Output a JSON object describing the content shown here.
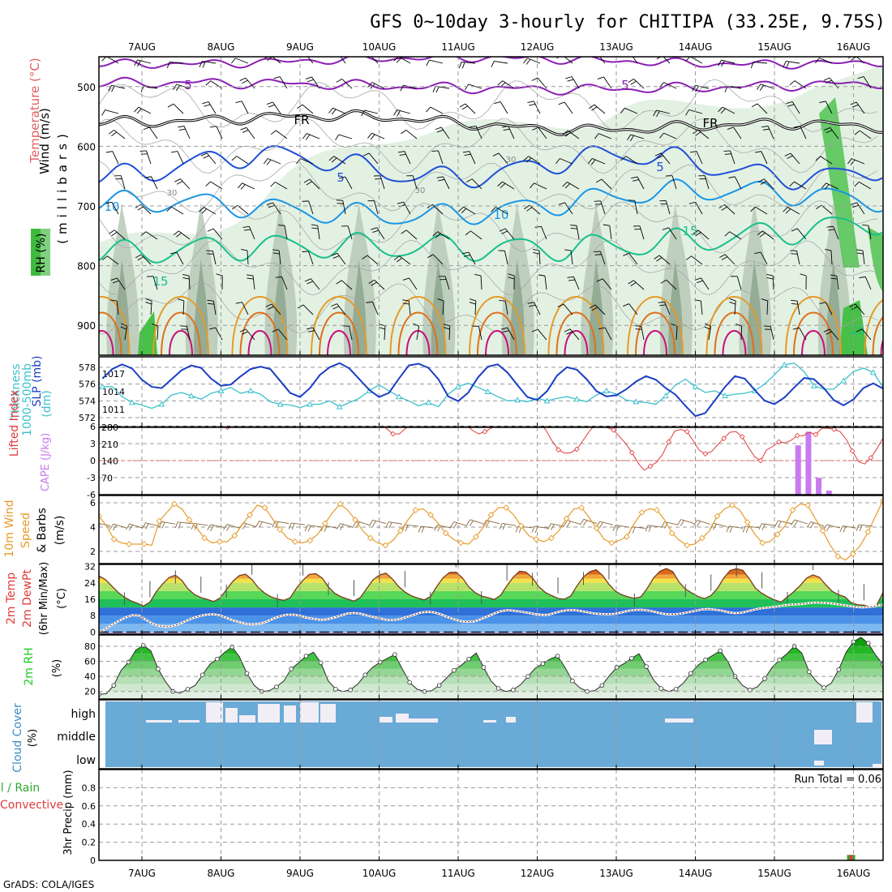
{
  "title": "GFS 0~10day 3-hourly for CHITIPA (33.25E, 9.75S)",
  "credit": "GrADS: COLA/IGES",
  "colors": {
    "frame": "#000000",
    "grid": "#999999",
    "rh_light": "#e3f1e3",
    "rh_mid": "#b7c9b7",
    "rh_dark": "#8fa68f",
    "rh_bright": "#46c046",
    "purple": "#8a1fb4",
    "blue": "#1f4fd6",
    "light_blue": "#1896e6",
    "green": "#17c08a",
    "orange": "#e69a28",
    "dark_orange": "#e0701a",
    "magenta": "#c8107a",
    "cyan": "#3cc0cc",
    "slp_blue": "#1b3ec4",
    "li_red": "#e03a3a",
    "cape_violet": "#c87af0",
    "wind_orange": "#e69a28",
    "barb_brown": "#8a6a40",
    "cloud_blue": "#6aaad6",
    "cloud_white": "#f2eef6",
    "rh2m_green": "#22cc22"
  },
  "chart_data": [
    {
      "type": "contour",
      "name": "cross-section",
      "ylabel_parts": [
        "RH (%)",
        "Temperature (°C)",
        "Wind (m/s)"
      ],
      "yaxis_title": "(millibars)",
      "x_ticks": [
        "7AUG",
        "8AUG",
        "9AUG",
        "10AUG",
        "11AUG",
        "12AUG",
        "13AUG",
        "14AUG",
        "15AUG",
        "16AUG"
      ],
      "y_ticks": [
        500,
        600,
        700,
        800,
        900
      ],
      "ylim": [
        450,
        950
      ],
      "contour_labels": [
        "5",
        "5",
        "FR",
        "FR",
        "30",
        "30",
        "30",
        "5",
        "5",
        "10",
        "10",
        "15",
        "15",
        "15"
      ]
    },
    {
      "type": "line",
      "name": "thickness-slp",
      "ylabel_left": "1000-500mb Thickness (dm)",
      "ylabel_right": "SLP (mb)",
      "left_ticks": [
        572,
        574,
        576,
        578
      ],
      "right_ticks": [
        1011,
        1014,
        1017
      ],
      "series": [
        {
          "name": "SLP (mb)",
          "values": [
            1016.2,
            1017.8,
            1018.6,
            1017.9,
            1016.0,
            1014.8,
            1014.6,
            1016.1,
            1017.6,
            1018.4,
            1018.0,
            1016.2,
            1015.0,
            1015.2,
            1016.6,
            1017.8,
            1018.2,
            1017.8,
            1015.8,
            1013.8,
            1013.1,
            1014.6,
            1016.8,
            1018.1,
            1018.8,
            1017.9,
            1016.1,
            1014.3,
            1013.1,
            1013.8,
            1016.2,
            1018.4,
            1018.7,
            1018.0,
            1016.1,
            1013.2,
            1012.4,
            1013.8,
            1016.4,
            1018.2,
            1018.6,
            1017.2,
            1015.1,
            1013.1,
            1012.6,
            1014.1,
            1016.7,
            1018.1,
            1017.7,
            1016.1,
            1014.1,
            1013.2,
            1013.4,
            1014.4,
            1015.7,
            1016.6,
            1016.0,
            1014.6,
            1013.5,
            1011.6,
            1009.9,
            1010.4,
            1012.6,
            1014.8,
            1016.6,
            1016.2,
            1014.3,
            1012.5,
            1011.9,
            1013.0,
            1014.7,
            1016.3,
            1016.1,
            1014.6,
            1012.6,
            1011.7,
            1012.7,
            1014.6,
            1015.4,
            1014.5,
            1013.1,
            1014.8,
            1016.5,
            1017.1,
            1015.7,
            1013.6,
            1011.7,
            1011.5,
            1012.7,
            1014.9,
            1016.1,
            1015.2,
            1013.2,
            1010.8,
            1011.0,
            1013.8,
            1016.1,
            1018.1,
            1019.6
          ]
        },
        {
          "name": "1000-500mb Thickness (dm)",
          "values": [
            575.7,
            575.7,
            574.5,
            573.8,
            573.5,
            573.1,
            573.6,
            574.7,
            575.0,
            574.6,
            574.2,
            574.9,
            575.2,
            575.6,
            574.9,
            575.2,
            574.8,
            573.9,
            573.6,
            573.5,
            573.2,
            573.6,
            573.6,
            574.0,
            573.3,
            573.8,
            574.3,
            575.2,
            575.9,
            575.2,
            574.5,
            574.0,
            573.4,
            573.8,
            573.3,
            574.8,
            575.7,
            576.1,
            575.6,
            575.1,
            574.5,
            574.0,
            574.1,
            573.9,
            574.3,
            574.0,
            574.3,
            574.5,
            574.2,
            573.9,
            574.7,
            575.2,
            574.8,
            574.1,
            573.9,
            573.8,
            573.6,
            574.6,
            575.9,
            576.6,
            575.7,
            575.0,
            575.2,
            574.6,
            574.8,
            574.9,
            575.2,
            576.0,
            577.1,
            578.3,
            578.5,
            577.5,
            575.8,
            575.4,
            575.4,
            576.4,
            577.5,
            577.9,
            577.4,
            575.6,
            575.2,
            575.7,
            575.5,
            575.4,
            575.2,
            575.6,
            575.9,
            576.6,
            577.9,
            578.2,
            577.8,
            576.3,
            575.6,
            576.0,
            576.9,
            577.5,
            577.1,
            575.6,
            575.1
          ]
        }
      ]
    },
    {
      "type": "bar",
      "name": "li-cape",
      "ylabel_left": "Lifted Index",
      "ylabel_right": "CAPE (J/kg)",
      "left_ticks": [
        "6",
        "3",
        "0",
        "-3",
        "-6"
      ],
      "right_ticks": [
        70,
        140,
        210,
        280
      ],
      "cape_bars": [
        {
          "x": 8.3,
          "value": 205
        },
        {
          "x": 8.43,
          "value": 262
        },
        {
          "x": 8.56,
          "value": 70
        },
        {
          "x": 8.69,
          "value": 17
        }
      ],
      "lifted_index": [
        6.3,
        6.9,
        7.2,
        7.5,
        7.9,
        8.0,
        8.0,
        7.6,
        7.1,
        6.7,
        6.5,
        6.7,
        7.1,
        7.7,
        8.3,
        8.4,
        8.4,
        8.1,
        7.5,
        6.9,
        6.3,
        5.9,
        6.0,
        6.6,
        7.3,
        7.8,
        8.3,
        8.7,
        8.8,
        8.6,
        8.1,
        7.5,
        6.9,
        6.4,
        6.0,
        5.9,
        6.1,
        6.8,
        7.4,
        7.9,
        8.4,
        8.5,
        8.5,
        8.2,
        7.6,
        7.2,
        6.4,
        5.6,
        4.7,
        4.7,
        5.6,
        6.4,
        7.2,
        7.8,
        8.3,
        8.7,
        8.8,
        8.5,
        8.1,
        7.3,
        6.3,
        5.3,
        4.7,
        5.1,
        5.7,
        6.4,
        7.0,
        7.6,
        8.3,
        8.6,
        8.3,
        7.5,
        6.7,
        5.3,
        3.4,
        1.9,
        1.3,
        1.4,
        2.0,
        3.5,
        5.1,
        6.3,
        6.1,
        5.8,
        5.4,
        4.2,
        3.0,
        1.4,
        -0.4,
        -1.7,
        -1.0,
        -0.3,
        1.1,
        3.3,
        5.2,
        5.5,
        5.1,
        3.5,
        1.8,
        1.2,
        1.6,
        2.8,
        3.9,
        5.0,
        5.1,
        4.2,
        2.4,
        0.7,
        0.0,
        1.9,
        2.5,
        3.3,
        3.1,
        3.6,
        4.4,
        4.4,
        5.0,
        4.6,
        5.7,
        5.7,
        5.5,
        5.1,
        3.7,
        1.7,
        -0.2,
        -0.6,
        0.5,
        2.1,
        4.0
      ]
    },
    {
      "type": "line",
      "name": "wind10m",
      "ylabel": "10m Wind Speed & Barbs (m/s)",
      "ylabel_parts": [
        "10m Wind",
        "Speed",
        "& Barbs",
        "(m/s)"
      ],
      "y_ticks": [
        2,
        4,
        6
      ],
      "ylim": [
        1,
        6.6
      ],
      "values": [
        4.9,
        4.1,
        3.0,
        2.7,
        2.6,
        2.6,
        2.6,
        2.5,
        4.5,
        5.2,
        5.9,
        5.5,
        4.6,
        3.9,
        3.1,
        2.7,
        2.8,
        2.8,
        3.3,
        4.2,
        5.0,
        5.8,
        5.6,
        4.7,
        3.8,
        3.1,
        2.8,
        2.7,
        2.9,
        3.4,
        4.3,
        5.2,
        5.9,
        5.4,
        4.6,
        3.7,
        3.1,
        2.7,
        2.5,
        2.9,
        3.7,
        4.6,
        5.4,
        5.5,
        5.0,
        4.3,
        3.5,
        3.0,
        2.7,
        2.6,
        3.2,
        4.0,
        5.0,
        5.6,
        5.6,
        5.0,
        4.1,
        3.3,
        3.0,
        2.8,
        3.1,
        3.7,
        4.7,
        5.5,
        5.6,
        4.8,
        3.9,
        3.0,
        2.7,
        2.9,
        3.2,
        4.3,
        5.2,
        5.5,
        5.4,
        4.6,
        3.5,
        2.9,
        2.5,
        2.6,
        3.1,
        3.7,
        4.9,
        5.5,
        5.8,
        5.4,
        4.4,
        3.4,
        2.7,
        2.8,
        3.4,
        4.1,
        5.4,
        5.9,
        5.8,
        4.7,
        3.7,
        2.5,
        1.6,
        1.3,
        1.8,
        2.5,
        3.6,
        4.9,
        6.2
      ]
    },
    {
      "type": "area",
      "name": "temp-dewpt",
      "ylabel": "2m Temp 2m DewPt (6hr Min/Max) (°C)",
      "ylabel_parts": [
        "2m Temp",
        "2m DewPt",
        "(6hr Min/Max)",
        "(°C)"
      ],
      "y_ticks": [
        0,
        8,
        16,
        24,
        32
      ],
      "ylim": [
        -1,
        33
      ],
      "temp": [
        27.4,
        25.6,
        22.5,
        19.4,
        17.0,
        15.3,
        14.1,
        12.7,
        14.6,
        19.7,
        23.5,
        26.6,
        27.7,
        25.2,
        21.0,
        18.3,
        16.8,
        15.9,
        14.9,
        16.6,
        20.7,
        24.7,
        27.5,
        28.2,
        25.6,
        21.7,
        19.0,
        17.2,
        16.1,
        15.5,
        16.7,
        21.5,
        25.2,
        28.1,
        28.5,
        26.4,
        22.0,
        18.9,
        17.2,
        16.1,
        15.1,
        16.8,
        21.2,
        25.5,
        27.8,
        28.7,
        26.0,
        22.2,
        19.5,
        17.7,
        16.6,
        15.7,
        17.3,
        22.3,
        26.5,
        29.1,
        29.2,
        26.5,
        22.1,
        19.3,
        17.6,
        16.8,
        15.9,
        17.9,
        22.7,
        26.8,
        29.7,
        29.2,
        26.5,
        22.1,
        19.4,
        17.8,
        16.4,
        16.0,
        17.6,
        22.6,
        26.9,
        29.4,
        30.4,
        27.6,
        23.3,
        20.0,
        18.2,
        17.2,
        16.4,
        17.2,
        21.3,
        26.4,
        29.6,
        31.0,
        29.5,
        24.4,
        21.0,
        19.1,
        17.3,
        16.3,
        17.8,
        21.2,
        26.3,
        30.0,
        30.9,
        30.1,
        26.1,
        21.3,
        18.9,
        17.1,
        15.7,
        14.6,
        17.2,
        19.7,
        22.7,
        26.3,
        27.9,
        26.7,
        23.1,
        19.9,
        18.2,
        17.2,
        14.3,
        13.3,
        13.1,
        12.3,
        13.1,
        19.3
      ],
      "dewpt": [
        -0.3,
        1.7,
        3.7,
        5.5,
        7.2,
        8.2,
        8.0,
        6.0,
        4.1,
        3.0,
        2.6,
        3.0,
        4.0,
        5.4,
        6.8,
        7.8,
        8.5,
        8.7,
        8.3,
        7.0,
        5.7,
        4.8,
        4.0,
        3.8,
        4.1,
        5.1,
        6.5,
        7.7,
        8.5,
        8.5,
        8.0,
        7.0,
        6.5,
        6.0,
        6.2,
        7.0,
        8.0,
        9.0,
        9.3,
        9.0,
        8.1,
        7.3,
        6.6,
        5.9,
        5.9,
        6.4,
        7.4,
        8.5,
        9.5,
        9.9,
        9.6,
        8.7,
        7.4,
        6.2,
        5.3,
        5.0,
        5.2,
        6.3,
        7.7,
        9.1,
        10.2,
        10.7,
        10.4,
        9.9,
        9.4,
        8.8,
        8.4,
        8.4,
        9.3,
        10.2,
        10.7,
        10.7,
        10.2,
        9.6,
        9.0,
        8.8,
        8.7,
        8.9,
        9.6,
        10.4,
        10.8,
        10.9,
        10.5,
        9.8,
        9.0,
        8.6,
        8.7,
        9.1,
        9.7,
        10.4,
        11.0,
        11.2,
        10.9,
        10.4,
        9.6,
        9.2,
        9.5,
        10.3,
        11.1,
        11.7,
        12.0,
        12.4,
        12.9,
        13.3,
        13.5,
        13.7,
        14.2,
        14.4,
        14.3,
        14.1,
        13.7,
        13.2,
        12.7,
        12.2,
        12.0,
        12.3,
        12.8,
        13.3
      ]
    },
    {
      "type": "area",
      "name": "rh2m",
      "ylabel": "2m RH (%)",
      "y_ticks": [
        20,
        40,
        60,
        80
      ],
      "ylim": [
        10,
        95
      ],
      "values": [
        16,
        17,
        28,
        48,
        59,
        75,
        81,
        74,
        50,
        33,
        20,
        18,
        23,
        28,
        42,
        56,
        63,
        72,
        79,
        66,
        44,
        28,
        20,
        21,
        26,
        34,
        50,
        58,
        67,
        72,
        58,
        34,
        23,
        20,
        22,
        30,
        42,
        52,
        59,
        64,
        69,
        50,
        32,
        23,
        20,
        21,
        28,
        38,
        48,
        55,
        63,
        71,
        52,
        34,
        24,
        20,
        22,
        29,
        40,
        51,
        57,
        63,
        67,
        52,
        34,
        25,
        20,
        21,
        28,
        41,
        52,
        57,
        64,
        70,
        53,
        35,
        24,
        20,
        23,
        31,
        44,
        55,
        62,
        68,
        74,
        60,
        40,
        28,
        22,
        26,
        37,
        52,
        62,
        70,
        80,
        71,
        46,
        33,
        25,
        31,
        49,
        72,
        86,
        92,
        84,
        68,
        56
      ]
    },
    {
      "type": "heatmap",
      "name": "cloud-cover",
      "ylabel": "Cloud Cover (%)",
      "levels": [
        "high",
        "middle",
        "low"
      ]
    },
    {
      "type": "bar",
      "name": "precip",
      "ylabel": "3hr Precip (mm)",
      "ylabel_series": [
        "Total / Rain",
        "Convective"
      ],
      "annotation": "Run Total = 0.06",
      "y_ticks": [
        "0",
        "0.2",
        "0.4",
        "0.6",
        "0.8"
      ],
      "ylim": [
        0,
        1.0
      ],
      "bars": [
        {
          "x": 8.97,
          "total": 0.06,
          "convective": 0.06
        }
      ]
    }
  ]
}
